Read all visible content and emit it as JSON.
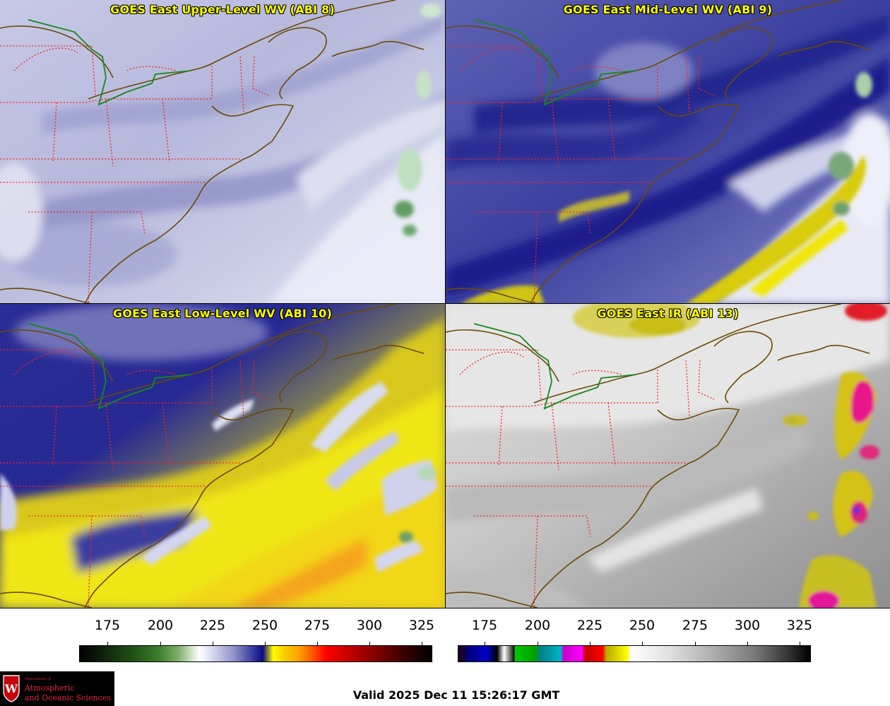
{
  "panels": [
    {
      "title": "GOES East Upper-Level WV (ABI 8)",
      "scene": "wv-upper"
    },
    {
      "title": "GOES East Mid-Level WV (ABI 9)",
      "scene": "wv-mid"
    },
    {
      "title": "GOES East Low-Level WV (ABI 10)",
      "scene": "wv-low"
    },
    {
      "title": "GOES East IR (ABI 13)",
      "scene": "ir"
    }
  ],
  "colorbars": [
    {
      "name": "water-vapor-scale",
      "ticks": [
        "175",
        "200",
        "225",
        "250",
        "275",
        "300",
        "325"
      ]
    },
    {
      "name": "ir-scale",
      "ticks": [
        "175",
        "200",
        "225",
        "250",
        "275",
        "300",
        "325"
      ]
    }
  ],
  "logo": {
    "small": "Department of",
    "line1": "Atmospheric",
    "line2": "and Oceanic Sciences",
    "crest_letter": "W"
  },
  "footer": {
    "valid": "Valid 2025 Dec 11 15:26:17 GMT"
  },
  "colors": {
    "title_text": "#ffff00",
    "state_borders": "#ff2020",
    "coastlines": "#6b4a00",
    "canada_us_border": "#1a8a1a",
    "logo_text": "#e8263c"
  }
}
